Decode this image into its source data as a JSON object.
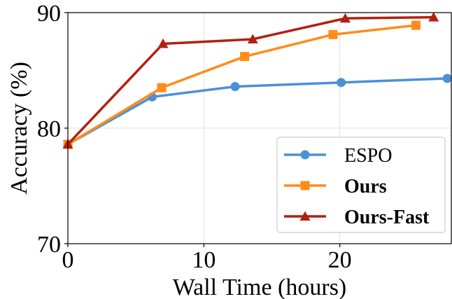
{
  "chart_data": {
    "type": "line",
    "xlabel": "Wall Time (hours)",
    "ylabel": "Accuracy (%)",
    "xlim": [
      0,
      28.2
    ],
    "ylim": [
      70,
      90
    ],
    "xticks": [
      0,
      10,
      20
    ],
    "yticks": [
      70,
      80,
      90
    ],
    "grid": true,
    "legend_position": "lower-right",
    "series": [
      {
        "name": "ESPO",
        "color": "#4a90d9",
        "marker": "circle",
        "bold": false,
        "x": [
          0,
          6.2,
          12.3,
          20.1,
          27.9
        ],
        "y": [
          78.6,
          82.7,
          83.6,
          83.95,
          84.3
        ]
      },
      {
        "name": "Ours",
        "color": "#ff8c1a",
        "marker": "square",
        "bold": true,
        "x": [
          0,
          6.9,
          13.0,
          19.5,
          25.6
        ],
        "y": [
          78.6,
          83.5,
          86.2,
          88.1,
          88.9
        ]
      },
      {
        "name": "Ours-Fast",
        "color": "#b22010",
        "marker": "triangle",
        "bold": true,
        "x": [
          0,
          7.0,
          13.6,
          20.4,
          26.9
        ],
        "y": [
          78.6,
          87.3,
          87.7,
          89.5,
          89.6
        ]
      }
    ]
  }
}
